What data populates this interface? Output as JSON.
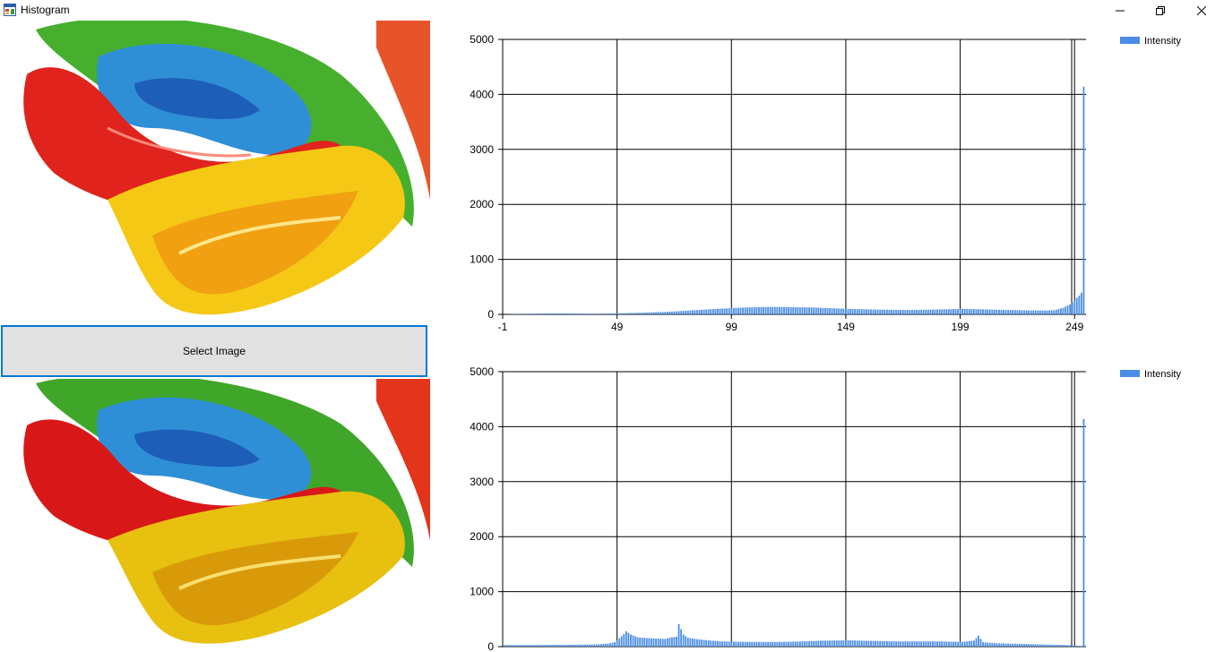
{
  "window": {
    "title": "Histogram",
    "icon": "form-icon",
    "controls": {
      "minimize": "minimize-icon",
      "maximize": "restore-icon",
      "close": "close-icon"
    }
  },
  "button": {
    "select_label": "Select Image"
  },
  "colors": {
    "bar": "#4a8de6",
    "accent": "#0078d7",
    "button_bg": "#e1e1e1"
  },
  "chart_data": [
    {
      "type": "bar",
      "xticks": [
        "-1",
        "49",
        "99",
        "149",
        "199",
        "249"
      ],
      "yticks": [
        "0",
        "1000",
        "2000",
        "3000",
        "4000",
        "5000"
      ],
      "xlim": [
        -1,
        254
      ],
      "ylim": [
        0,
        5000
      ],
      "grid": true,
      "legend": "top-right",
      "series": [
        {
          "name": "Intensity",
          "color": "#4a8de6"
        }
      ],
      "profile": [
        [
          0,
          0
        ],
        [
          5,
          8
        ],
        [
          10,
          12
        ],
        [
          15,
          14
        ],
        [
          20,
          15
        ],
        [
          25,
          16
        ],
        [
          30,
          14
        ],
        [
          35,
          13
        ],
        [
          40,
          12
        ],
        [
          45,
          14
        ],
        [
          50,
          18
        ],
        [
          55,
          25
        ],
        [
          60,
          30
        ],
        [
          65,
          38
        ],
        [
          70,
          45
        ],
        [
          75,
          55
        ],
        [
          80,
          70
        ],
        [
          85,
          80
        ],
        [
          90,
          95
        ],
        [
          95,
          105
        ],
        [
          100,
          115
        ],
        [
          105,
          125
        ],
        [
          110,
          130
        ],
        [
          115,
          135
        ],
        [
          120,
          135
        ],
        [
          125,
          130
        ],
        [
          130,
          128
        ],
        [
          135,
          125
        ],
        [
          140,
          115
        ],
        [
          145,
          108
        ],
        [
          150,
          100
        ],
        [
          155,
          95
        ],
        [
          160,
          90
        ],
        [
          165,
          85
        ],
        [
          170,
          82
        ],
        [
          175,
          80
        ],
        [
          180,
          82
        ],
        [
          185,
          85
        ],
        [
          190,
          90
        ],
        [
          195,
          95
        ],
        [
          200,
          100
        ],
        [
          205,
          95
        ],
        [
          210,
          90
        ],
        [
          215,
          85
        ],
        [
          220,
          80
        ],
        [
          225,
          75
        ],
        [
          230,
          72
        ],
        [
          235,
          70
        ],
        [
          240,
          75
        ],
        [
          244,
          120
        ],
        [
          247,
          180
        ],
        [
          249,
          260
        ],
        [
          250,
          300
        ],
        [
          251,
          340
        ],
        [
          252,
          390
        ],
        [
          253,
          4140
        ],
        [
          254,
          0
        ]
      ]
    },
    {
      "type": "bar",
      "xticks": [],
      "yticks": [
        "0",
        "1000",
        "2000",
        "3000",
        "4000",
        "5000"
      ],
      "xlim": [
        -1,
        254
      ],
      "ylim": [
        0,
        5000
      ],
      "grid": true,
      "legend": "top-right",
      "series": [
        {
          "name": "Intensity",
          "color": "#4a8de6"
        }
      ],
      "profile": [
        [
          0,
          30
        ],
        [
          10,
          30
        ],
        [
          20,
          32
        ],
        [
          30,
          35
        ],
        [
          40,
          40
        ],
        [
          45,
          55
        ],
        [
          48,
          80
        ],
        [
          50,
          150
        ],
        [
          52,
          230
        ],
        [
          53,
          280
        ],
        [
          55,
          220
        ],
        [
          58,
          170
        ],
        [
          60,
          160
        ],
        [
          65,
          150
        ],
        [
          70,
          140
        ],
        [
          73,
          170
        ],
        [
          75,
          180
        ],
        [
          76,
          410
        ],
        [
          78,
          220
        ],
        [
          80,
          160
        ],
        [
          85,
          130
        ],
        [
          90,
          110
        ],
        [
          95,
          95
        ],
        [
          100,
          90
        ],
        [
          110,
          85
        ],
        [
          120,
          85
        ],
        [
          130,
          95
        ],
        [
          140,
          110
        ],
        [
          150,
          115
        ],
        [
          160,
          105
        ],
        [
          170,
          95
        ],
        [
          180,
          95
        ],
        [
          190,
          95
        ],
        [
          200,
          85
        ],
        [
          205,
          110
        ],
        [
          207,
          200
        ],
        [
          209,
          80
        ],
        [
          215,
          60
        ],
        [
          225,
          50
        ],
        [
          235,
          40
        ],
        [
          245,
          30
        ],
        [
          252,
          10
        ],
        [
          253,
          4140
        ],
        [
          254,
          0
        ]
      ]
    }
  ]
}
